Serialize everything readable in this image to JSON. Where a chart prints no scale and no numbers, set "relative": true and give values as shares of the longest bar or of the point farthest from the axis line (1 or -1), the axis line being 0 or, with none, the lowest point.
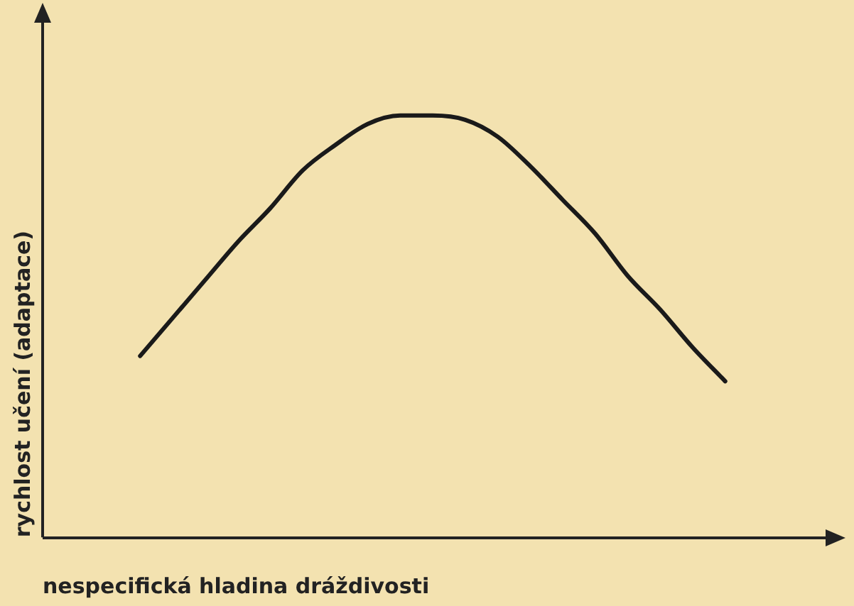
{
  "chart_data": {
    "type": "line",
    "relative": true,
    "xlabel": "nespecifická hladina dráždivosti",
    "ylabel": "rychlost učení (adaptace)",
    "categories": [
      null,
      null,
      null,
      null,
      null,
      null,
      null,
      null,
      null,
      null,
      null,
      null,
      null,
      null,
      null,
      null,
      null,
      null,
      null,
      null,
      null,
      null,
      null,
      null,
      null
    ],
    "series": [
      {
        "color": "#1a1a1a",
        "values": [
          null,
          null,
          null,
          0.43,
          0.52,
          0.61,
          0.7,
          0.78,
          0.87,
          0.93,
          0.98,
          1.0,
          1.0,
          0.99,
          0.95,
          0.88,
          0.8,
          0.72,
          0.62,
          0.54,
          0.45,
          0.37,
          null,
          null,
          null
        ]
      }
    ],
    "grid": false,
    "legend": false,
    "marker": "none",
    "line_style": "solid"
  }
}
